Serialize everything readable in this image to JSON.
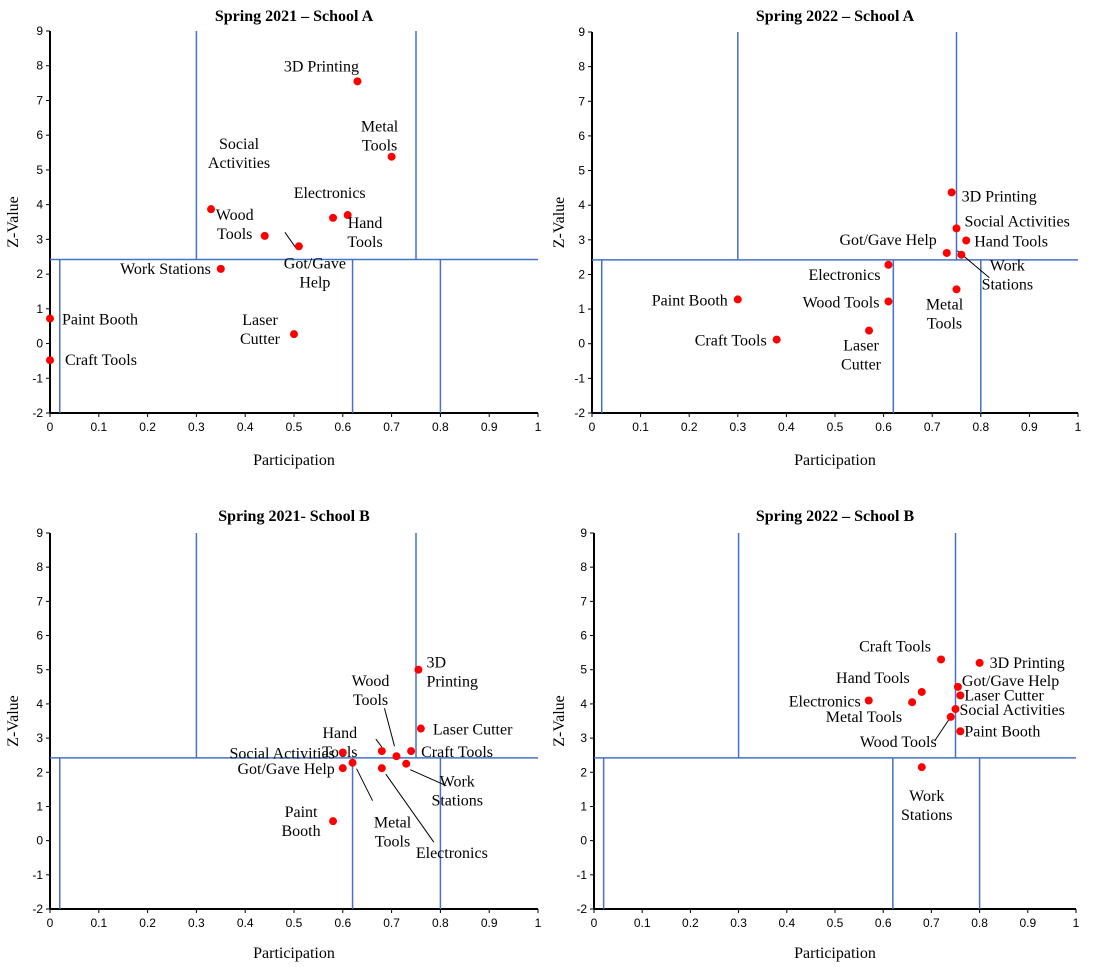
{
  "chart_data": [
    {
      "id": "p1",
      "type": "scatter",
      "title": "Spring 2021 – School A",
      "xlabel": "Participation",
      "ylabel": "Z-Value",
      "xlim": [
        0,
        1
      ],
      "ylim": [
        -2,
        9
      ],
      "xticks": [
        "0",
        "0.1",
        "0.2",
        "0.3",
        "0.4",
        "0.5",
        "0.6",
        "0.7",
        "0.8",
        "0.9",
        "1"
      ],
      "yticks": [
        "-2",
        "-1",
        "0",
        "1",
        "2",
        "3",
        "4",
        "5",
        "6",
        "7",
        "8",
        "9"
      ],
      "grid": false,
      "point_color": "#ff0000",
      "line_color": "#4472c4",
      "reference_lines": {
        "horizontal_y": 2.42,
        "upper_verticals_x": [
          0.3,
          0.75
        ],
        "lower_verticals_x": [
          0.02,
          0.62,
          0.8
        ]
      },
      "points": [
        {
          "label": [
            "3D Printing"
          ],
          "x": 0.63,
          "y": 7.55
        },
        {
          "label": [
            "Metal",
            "Tools"
          ],
          "x": 0.7,
          "y": 5.38
        },
        {
          "label": [
            "Social",
            "Activities"
          ],
          "x": 0.33,
          "y": 3.87
        },
        {
          "label": [
            "Electronics"
          ],
          "x": 0.61,
          "y": 3.7
        },
        {
          "label": [
            "Hand",
            "Tools"
          ],
          "x": 0.58,
          "y": 3.62
        },
        {
          "label": [
            "Wood",
            "Tools"
          ],
          "x": 0.44,
          "y": 3.1
        },
        {
          "label": [
            "Got/Gave",
            "Help"
          ],
          "x": 0.51,
          "y": 2.8
        },
        {
          "label": [
            "Work Stations"
          ],
          "x": 0.35,
          "y": 2.15
        },
        {
          "label": [
            "Paint Booth"
          ],
          "x": 0.0,
          "y": 0.72
        },
        {
          "label": [
            "Laser",
            "Cutter"
          ],
          "x": 0.5,
          "y": 0.27
        },
        {
          "label": [
            "Craft Tools"
          ],
          "x": 0.0,
          "y": -0.48
        }
      ]
    },
    {
      "id": "p2",
      "type": "scatter",
      "title": "Spring 2022 – School A",
      "xlabel": "Participation",
      "ylabel": "Z-Value",
      "xlim": [
        0,
        1
      ],
      "ylim": [
        -2,
        9
      ],
      "xticks": [
        "0",
        "0.1",
        "0.2",
        "0.3",
        "0.4",
        "0.5",
        "0.6",
        "0.7",
        "0.8",
        "0.9",
        "1"
      ],
      "yticks": [
        "-2",
        "-1",
        "0",
        "1",
        "2",
        "3",
        "4",
        "5",
        "6",
        "7",
        "8",
        "9"
      ],
      "grid": false,
      "point_color": "#ff0000",
      "line_color": "#4472c4",
      "reference_lines": {
        "horizontal_y": 2.42,
        "upper_verticals_x": [
          0.3,
          0.75
        ],
        "lower_verticals_x": [
          0.02,
          0.62,
          0.8
        ]
      },
      "points": [
        {
          "label": [
            "3D Printing"
          ],
          "x": 0.74,
          "y": 4.37
        },
        {
          "label": [
            "Social Activities"
          ],
          "x": 0.75,
          "y": 3.33
        },
        {
          "label": [
            "Hand Tools"
          ],
          "x": 0.77,
          "y": 2.98
        },
        {
          "label": [
            "Got/Gave Help"
          ],
          "x": 0.73,
          "y": 2.62
        },
        {
          "label": [
            "Work",
            "Stations"
          ],
          "x": 0.76,
          "y": 2.57
        },
        {
          "label": [
            "Electronics"
          ],
          "x": 0.61,
          "y": 2.28
        },
        {
          "label": [
            "Metal",
            "Tools"
          ],
          "x": 0.75,
          "y": 1.57
        },
        {
          "label": [
            "Paint Booth"
          ],
          "x": 0.3,
          "y": 1.28
        },
        {
          "label": [
            "Wood Tools"
          ],
          "x": 0.61,
          "y": 1.22
        },
        {
          "label": [
            "Laser",
            "Cutter"
          ],
          "x": 0.57,
          "y": 0.38
        },
        {
          "label": [
            "Craft Tools"
          ],
          "x": 0.38,
          "y": 0.12
        }
      ]
    },
    {
      "id": "p3",
      "type": "scatter",
      "title": "Spring 2021- School B",
      "xlabel": "Participation",
      "ylabel": "Z-Value",
      "xlim": [
        0,
        1
      ],
      "ylim": [
        -2,
        9
      ],
      "xticks": [
        "0",
        "0.1",
        "0.2",
        "0.3",
        "0.4",
        "0.5",
        "0.6",
        "0.7",
        "0.8",
        "0.9",
        "1"
      ],
      "yticks": [
        "-2",
        "-1",
        "0",
        "1",
        "2",
        "3",
        "4",
        "5",
        "6",
        "7",
        "8",
        "9"
      ],
      "grid": false,
      "point_color": "#ff0000",
      "line_color": "#4472c4",
      "reference_lines": {
        "horizontal_y": 2.42,
        "upper_verticals_x": [
          0.3,
          0.75
        ],
        "lower_verticals_x": [
          0.02,
          0.62,
          0.8
        ]
      },
      "points": [
        {
          "label": [
            "3D",
            "Printing"
          ],
          "x": 0.755,
          "y": 5.0
        },
        {
          "label": [
            "Laser Cutter"
          ],
          "x": 0.76,
          "y": 3.28
        },
        {
          "label": [
            "Hand",
            "Tools"
          ],
          "x": 0.68,
          "y": 2.62
        },
        {
          "label": [
            "Social Activities"
          ],
          "x": 0.6,
          "y": 2.58
        },
        {
          "label": [
            "Craft Tools"
          ],
          "x": 0.74,
          "y": 2.62
        },
        {
          "label": [
            "Wood",
            "Tools"
          ],
          "x": 0.71,
          "y": 2.47
        },
        {
          "label": [
            "Work",
            "Stations"
          ],
          "x": 0.73,
          "y": 2.25
        },
        {
          "label": [
            "Metal",
            "Tools"
          ],
          "x": 0.62,
          "y": 2.28
        },
        {
          "label": [
            "Got/Gave Help"
          ],
          "x": 0.6,
          "y": 2.12
        },
        {
          "label": [
            "Electronics"
          ],
          "x": 0.68,
          "y": 2.12
        },
        {
          "label": [
            "Paint",
            "Booth"
          ],
          "x": 0.58,
          "y": 0.57
        }
      ]
    },
    {
      "id": "p4",
      "type": "scatter",
      "title": "Spring 2022 – School B",
      "xlabel": "Participation",
      "ylabel": "Z-Value",
      "xlim": [
        0,
        1
      ],
      "ylim": [
        -2,
        9
      ],
      "xticks": [
        "0",
        "0.1",
        "0.2",
        "0.3",
        "0.4",
        "0.5",
        "0.6",
        "0.7",
        "0.8",
        "0.9",
        "1"
      ],
      "yticks": [
        "-2",
        "-1",
        "0",
        "1",
        "2",
        "3",
        "4",
        "5",
        "6",
        "7",
        "8",
        "9"
      ],
      "grid": false,
      "point_color": "#ff0000",
      "line_color": "#4472c4",
      "reference_lines": {
        "horizontal_y": 2.42,
        "upper_verticals_x": [
          0.3,
          0.75
        ],
        "lower_verticals_x": [
          0.02,
          0.62,
          0.8
        ]
      },
      "points": [
        {
          "label": [
            "Craft Tools"
          ],
          "x": 0.72,
          "y": 5.3
        },
        {
          "label": [
            "3D Printing"
          ],
          "x": 0.8,
          "y": 5.2
        },
        {
          "label": [
            "Got/Gave Help"
          ],
          "x": 0.755,
          "y": 4.5
        },
        {
          "label": [
            "Hand Tools"
          ],
          "x": 0.68,
          "y": 4.35
        },
        {
          "label": [
            "Laser Cutter"
          ],
          "x": 0.76,
          "y": 4.25
        },
        {
          "label": [
            "Electronics"
          ],
          "x": 0.57,
          "y": 4.1
        },
        {
          "label": [
            "Metal Tools"
          ],
          "x": 0.66,
          "y": 4.05
        },
        {
          "label": [
            "Social Activities"
          ],
          "x": 0.75,
          "y": 3.85
        },
        {
          "label": [
            "Wood Tools"
          ],
          "x": 0.74,
          "y": 3.62
        },
        {
          "label": [
            "Paint Booth"
          ],
          "x": 0.76,
          "y": 3.2
        },
        {
          "label": [
            "Work",
            "Stations"
          ],
          "x": 0.68,
          "y": 2.15
        }
      ]
    }
  ]
}
